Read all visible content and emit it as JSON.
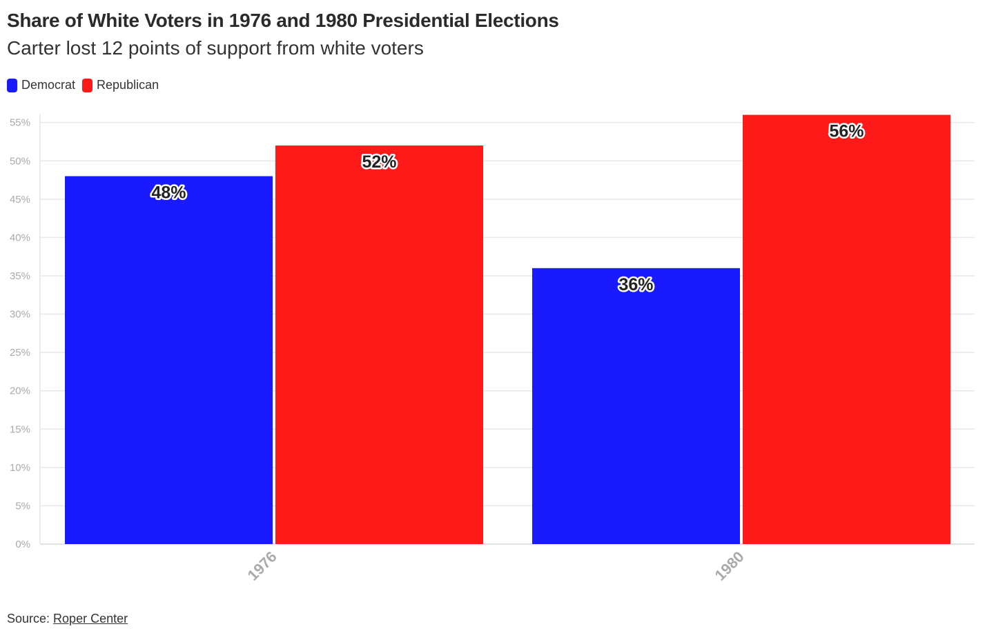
{
  "title": "Share of White Voters in 1976 and 1980 Presidential Elections",
  "subtitle": "Carter lost 12 points of support from white voters",
  "source_prefix": "Source: ",
  "source_link": "Roper Center",
  "colors": {
    "democrat": "#1a1aff",
    "republican": "#ff1a1a",
    "grid": "#e6e6e6",
    "axis_text": "#aaaaaa"
  },
  "chart_data": {
    "type": "bar",
    "title": "Share of White Voters in 1976 and 1980 Presidential Elections",
    "subtitle": "Carter lost 12 points of support from white voters",
    "categories": [
      "1976",
      "1980"
    ],
    "series": [
      {
        "name": "Democrat",
        "values": [
          48,
          36
        ],
        "labels": [
          "48%",
          "36%"
        ],
        "color": "#1a1aff"
      },
      {
        "name": "Republican",
        "values": [
          52,
          56
        ],
        "labels": [
          "52%",
          "56%"
        ],
        "color": "#ff1a1a"
      }
    ],
    "ylim": [
      0,
      56
    ],
    "yticks": [
      0,
      5,
      10,
      15,
      20,
      25,
      30,
      35,
      40,
      45,
      50,
      55
    ],
    "ytick_labels": [
      "0%",
      "5%",
      "10%",
      "15%",
      "20%",
      "25%",
      "30%",
      "35%",
      "40%",
      "45%",
      "50%",
      "55%"
    ],
    "xlabel": "",
    "ylabel": "",
    "grid": true,
    "legend": "top-left"
  }
}
